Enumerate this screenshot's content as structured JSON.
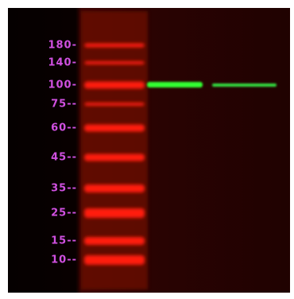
{
  "markers": [
    {
      "label": "180-"
    },
    {
      "label": "140-"
    },
    {
      "label": "100-"
    },
    {
      "label": "75--"
    },
    {
      "label": "60--"
    },
    {
      "label": "45--"
    },
    {
      "label": "35--"
    },
    {
      "label": "25--"
    },
    {
      "label": "15--"
    },
    {
      "label": "10--"
    }
  ]
}
